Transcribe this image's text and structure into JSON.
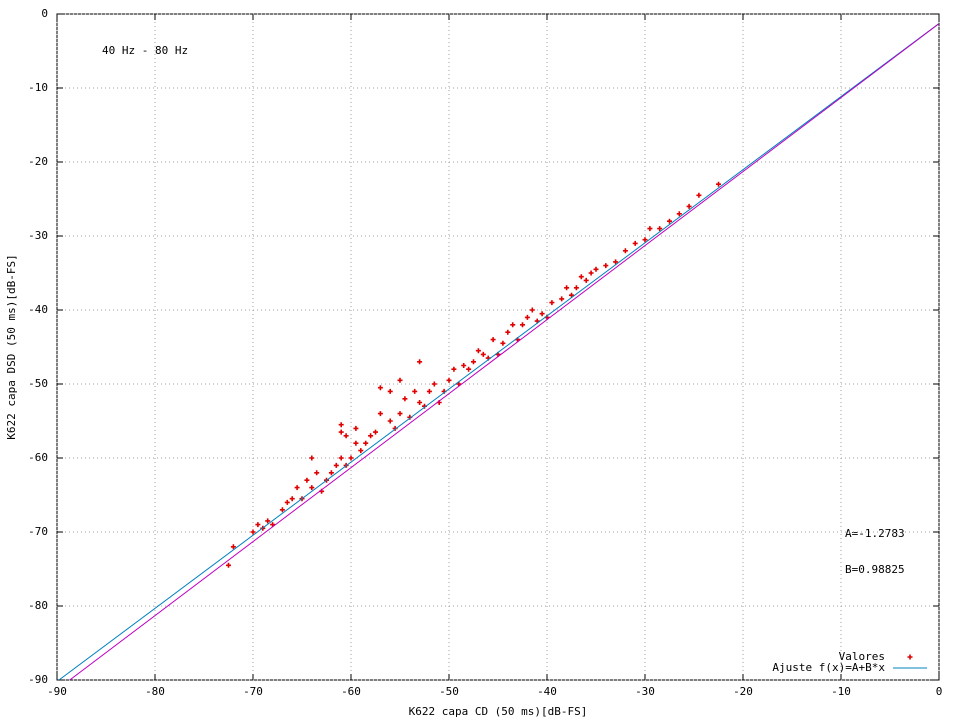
{
  "chart_data": {
    "type": "scatter",
    "xlabel": "K622 capa CD (50 ms)[dB-FS]",
    "ylabel": "K622 capa DSD (50 ms)[dB-FS]",
    "annotations": [
      "40 Hz - 80 Hz",
      "A=-1.2783",
      "B=0.98825"
    ],
    "xlim": [
      -90,
      0
    ],
    "ylim": [
      -90,
      0
    ],
    "xticks": [
      -90,
      -80,
      -70,
      -60,
      -50,
      -40,
      -30,
      -20,
      -10,
      0
    ],
    "yticks": [
      -90,
      -80,
      -70,
      -60,
      -50,
      -40,
      -30,
      -20,
      -10,
      0
    ],
    "grid": true,
    "legend": "bottom right",
    "series": [
      {
        "name": "Valores",
        "type": "scatter",
        "color": "#e00000",
        "x": [
          -72.5,
          -72,
          -70,
          -69.5,
          -69,
          -68.5,
          -68,
          -67,
          -66.5,
          -66,
          -65.5,
          -65,
          -64.5,
          -64,
          -63.5,
          -63,
          -62.5,
          -62,
          -61.5,
          -61,
          -60.5,
          -60,
          -59.5,
          -59,
          -60.5,
          -61,
          -59.5,
          -58.5,
          -58,
          -57.5,
          -57,
          -56,
          -55.5,
          -55,
          -54.5,
          -54,
          -53.5,
          -53,
          -52.5,
          -52,
          -51.5,
          -51,
          -50.5,
          -50,
          -49.5,
          -49,
          -48.5,
          -48,
          -47.5,
          -47,
          -46.5,
          -46,
          -45.5,
          -45,
          -44.5,
          -44,
          -43.5,
          -43,
          -42.5,
          -42,
          -41.5,
          -41,
          -40.5,
          -40,
          -39.5,
          -38.5,
          -38,
          -37.5,
          -37,
          -36.5,
          -36,
          -35.5,
          -35,
          -34,
          -33,
          -32,
          -31,
          -30,
          -29.5,
          -28.5,
          -27.5,
          -26.5,
          -25.5,
          -24.5,
          -22.5,
          -64,
          -61,
          -56,
          -57,
          -53,
          -55
        ],
        "values": [
          -74.5,
          -72,
          -70,
          -69,
          -69.5,
          -68.5,
          -69,
          -67,
          -66,
          -65.5,
          -64,
          -65.5,
          -63,
          -64,
          -62,
          -64.5,
          -63,
          -62,
          -61,
          -60,
          -61,
          -60,
          -58,
          -59,
          -57,
          -56.5,
          -56,
          -58,
          -57,
          -56.5,
          -54,
          -55,
          -56,
          -54,
          -52,
          -54.5,
          -51,
          -52.5,
          -53,
          -51,
          -50,
          -52.5,
          -51,
          -49.5,
          -48,
          -50,
          -47.5,
          -48,
          -47,
          -45.5,
          -46,
          -46.5,
          -44,
          -46,
          -44.5,
          -43,
          -42,
          -44,
          -42,
          -41,
          -40,
          -41.5,
          -40.5,
          -41,
          -39,
          -38.5,
          -37,
          -38,
          -37,
          -35.5,
          -36,
          -35,
          -34.5,
          -34,
          -33.5,
          -32,
          -31,
          -30.5,
          -29,
          -29,
          -28,
          -27,
          -26,
          -24.5,
          -23,
          -60,
          -55.5,
          -51,
          -50.5,
          -47,
          -49.5
        ]
      },
      {
        "name": "Ajuste f(x)=A+B*x",
        "type": "line",
        "color": "#0080c0",
        "x": [
          -89.8,
          0
        ],
        "values": [
          -90,
          -1.28
        ]
      },
      {
        "type": "line",
        "color": "#c000c0",
        "x": [
          -88.7,
          0
        ],
        "values": [
          -90,
          -1.3
        ]
      }
    ]
  }
}
